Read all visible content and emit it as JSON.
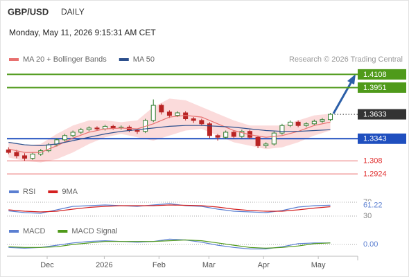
{
  "header": {
    "symbol": "GBP/USD",
    "period": "DAILY",
    "timestamp": "Monday, May 11, 2026 9:15:31 AM CET"
  },
  "credit": "Research © 2026 Trading Central",
  "chart_data": [
    {
      "type": "candlestick",
      "up_color": "#2f7d2f",
      "down_color": "#b82424",
      "xlim": [
        -0.2,
        43.4
      ],
      "xticks": [
        {
          "value": 4.8,
          "label": "Dec"
        },
        {
          "value": 11.9,
          "label": "2026"
        },
        {
          "value": 18.7,
          "label": "Feb"
        },
        {
          "value": 24.9,
          "label": "Mar"
        },
        {
          "value": 31.7,
          "label": "Apr"
        },
        {
          "value": 38.5,
          "label": "May"
        }
      ],
      "ylim": [
        1.281,
        1.421
      ],
      "x": [
        0,
        1,
        2,
        3,
        4,
        5,
        6,
        7,
        8,
        9,
        10,
        11,
        12,
        13,
        14,
        15,
        16,
        17,
        18,
        19,
        20,
        21,
        22,
        23,
        24,
        25,
        26,
        27,
        28,
        29,
        30,
        31,
        32,
        33,
        34,
        35,
        36,
        37,
        38,
        39,
        40
      ],
      "open": [
        1.321,
        1.318,
        1.314,
        1.311,
        1.316,
        1.32,
        1.327,
        1.333,
        1.338,
        1.342,
        1.345,
        1.347,
        1.346,
        1.349,
        1.347,
        1.348,
        1.344,
        1.343,
        1.356,
        1.374,
        1.366,
        1.362,
        1.365,
        1.358,
        1.356,
        1.352,
        1.338,
        1.336,
        1.342,
        1.337,
        1.343,
        1.336,
        1.326,
        1.328,
        1.341,
        1.35,
        1.354,
        1.35,
        1.352,
        1.355,
        1.357
      ],
      "high": [
        1.324,
        1.321,
        1.317,
        1.318,
        1.322,
        1.329,
        1.335,
        1.34,
        1.344,
        1.347,
        1.349,
        1.349,
        1.351,
        1.351,
        1.35,
        1.35,
        1.346,
        1.358,
        1.381,
        1.376,
        1.368,
        1.367,
        1.367,
        1.36,
        1.358,
        1.354,
        1.34,
        1.344,
        1.344,
        1.345,
        1.345,
        1.338,
        1.33,
        1.343,
        1.352,
        1.356,
        1.356,
        1.354,
        1.357,
        1.359,
        1.365
      ],
      "low": [
        1.316,
        1.311,
        1.308,
        1.309,
        1.314,
        1.318,
        1.325,
        1.331,
        1.336,
        1.34,
        1.343,
        1.344,
        1.344,
        1.345,
        1.345,
        1.342,
        1.34,
        1.341,
        1.354,
        1.363,
        1.359,
        1.36,
        1.356,
        1.353,
        1.35,
        1.335,
        1.332,
        1.334,
        1.335,
        1.335,
        1.334,
        1.323,
        1.323,
        1.326,
        1.339,
        1.348,
        1.348,
        1.348,
        1.35,
        1.353,
        1.355
      ],
      "close": [
        1.318,
        1.314,
        1.311,
        1.316,
        1.32,
        1.327,
        1.333,
        1.338,
        1.342,
        1.345,
        1.347,
        1.346,
        1.349,
        1.347,
        1.348,
        1.344,
        1.343,
        1.356,
        1.374,
        1.366,
        1.362,
        1.365,
        1.358,
        1.356,
        1.352,
        1.338,
        1.336,
        1.342,
        1.337,
        1.343,
        1.336,
        1.326,
        1.328,
        1.341,
        1.35,
        1.354,
        1.35,
        1.352,
        1.355,
        1.357,
        1.3633
      ],
      "series": [
        {
          "name": "MA 20 + Bollinger Bands",
          "color": "#e8706f",
          "band_color": "#f9cfcf",
          "x": [
            0,
            2,
            4,
            6,
            8,
            10,
            12,
            14,
            16,
            18,
            20,
            22,
            24,
            26,
            28,
            30,
            32,
            34,
            36,
            38,
            40
          ],
          "values": [
            1.322,
            1.318,
            1.318,
            1.326,
            1.335,
            1.342,
            1.346,
            1.347,
            1.346,
            1.352,
            1.36,
            1.362,
            1.36,
            1.352,
            1.344,
            1.339,
            1.336,
            1.338,
            1.343,
            1.35,
            1.354
          ],
          "upper": [
            1.33,
            1.326,
            1.328,
            1.34,
            1.35,
            1.356,
            1.356,
            1.354,
            1.356,
            1.372,
            1.382,
            1.38,
            1.372,
            1.364,
            1.356,
            1.35,
            1.35,
            1.35,
            1.356,
            1.362,
            1.364
          ],
          "lower": [
            1.312,
            1.308,
            1.306,
            1.31,
            1.318,
            1.328,
            1.336,
            1.34,
            1.336,
            1.332,
            1.338,
            1.344,
            1.346,
            1.338,
            1.33,
            1.326,
            1.322,
            1.324,
            1.33,
            1.338,
            1.344
          ]
        },
        {
          "name": "MA 50",
          "color": "#2c4f8c",
          "x": [
            0,
            2,
            4,
            6,
            8,
            10,
            12,
            14,
            16,
            18,
            20,
            22,
            24,
            26,
            28,
            30,
            32,
            34,
            36,
            38,
            40
          ],
          "values": [
            1.33,
            1.327,
            1.326,
            1.328,
            1.332,
            1.336,
            1.34,
            1.343,
            1.345,
            1.347,
            1.349,
            1.35,
            1.35,
            1.349,
            1.348,
            1.346,
            1.344,
            1.343,
            1.343,
            1.344,
            1.345
          ]
        }
      ],
      "levels": [
        {
          "value": 1.4108,
          "color": "#4f9a1a",
          "box": true,
          "line": "solid"
        },
        {
          "value": 1.3951,
          "color": "#4f9a1a",
          "box": true,
          "line": "solid"
        },
        {
          "value": 1.3633,
          "color": "#333333",
          "box": true,
          "line": "dotted"
        },
        {
          "value": 1.3343,
          "color": "#1f4fbf",
          "box": true,
          "line": "solid"
        },
        {
          "value": 1.308,
          "color": "#e03030",
          "box": false,
          "line": "thin"
        },
        {
          "value": 1.2924,
          "color": "#e03030",
          "box": false,
          "line": "thin"
        }
      ]
    },
    {
      "type": "line",
      "ylim": [
        24,
        80
      ],
      "yticks": [
        30,
        70
      ],
      "x": [
        0,
        2,
        4,
        6,
        8,
        10,
        12,
        14,
        16,
        18,
        20,
        22,
        24,
        26,
        28,
        30,
        32,
        34,
        36,
        38,
        40
      ],
      "series": [
        {
          "name": "RSI",
          "color": "#5b7fd1",
          "values": [
            45,
            40,
            38,
            48,
            58,
            60,
            62,
            60,
            58,
            62,
            66,
            60,
            58,
            50,
            44,
            42,
            40,
            46,
            56,
            60,
            61.22
          ]
        },
        {
          "name": "9MA",
          "color": "#d42020",
          "values": [
            48,
            44,
            42,
            44,
            50,
            55,
            58,
            60,
            60,
            60,
            62,
            61,
            60,
            56,
            50,
            46,
            44,
            44,
            48,
            53,
            57
          ]
        }
      ]
    },
    {
      "type": "line",
      "ylim": [
        -0.012,
        0.012
      ],
      "yticks": [
        {
          "value": 0,
          "label": "0.00"
        }
      ],
      "x": [
        0,
        2,
        4,
        6,
        8,
        10,
        12,
        14,
        16,
        18,
        20,
        22,
        24,
        26,
        28,
        30,
        32,
        34,
        36,
        38,
        40
      ],
      "series": [
        {
          "name": "MACD",
          "color": "#5b7fd1",
          "values": [
            -0.004,
            -0.005,
            -0.004,
            -0.001,
            0.002,
            0.004,
            0.005,
            0.004,
            0.003,
            0.004,
            0.007,
            0.006,
            0.003,
            -0.001,
            -0.004,
            -0.006,
            -0.006,
            -0.003,
            0.001,
            0.002,
            0.002
          ]
        },
        {
          "name": "MACD Signal",
          "color": "#4f9a1a",
          "values": [
            -0.003,
            -0.004,
            -0.004,
            -0.003,
            0,
            0.002,
            0.004,
            0.004,
            0.004,
            0.004,
            0.005,
            0.006,
            0.005,
            0.002,
            -0.001,
            -0.004,
            -0.005,
            -0.004,
            -0.002,
            0.001,
            0.002
          ]
        }
      ]
    }
  ]
}
